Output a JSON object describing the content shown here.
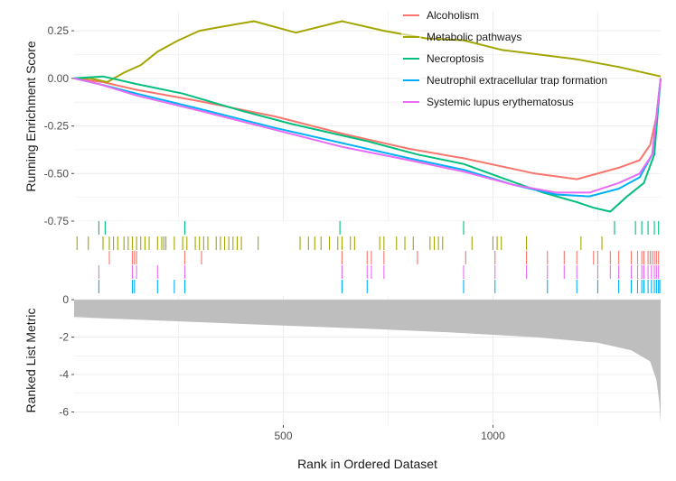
{
  "chart_data": {
    "type": "line",
    "x_range": [
      1,
      1400
    ],
    "colors": {
      "Alcoholism": "#F8766D",
      "Metabolic pathways": "#A3A500",
      "Necroptosis": "#00BF7D",
      "Neutrophil extracellular trap formation": "#00B0F6",
      "Systemic lupus erythematosus": "#E76BF3",
      "metric_fill": "#bebebe",
      "grid": "#ebebeb"
    },
    "panels": [
      {
        "name": "running-enrichment",
        "ylabel": "Running Enrichment Score",
        "ylim": [
          -0.75,
          0.35
        ],
        "yticks": [
          0.25,
          0.0,
          -0.25,
          -0.5,
          -0.75
        ],
        "ytick_labels": [
          "0.25",
          "0.00",
          "-0.25",
          "-0.50",
          "-0.75"
        ]
      },
      {
        "name": "gene-hits",
        "rows": [
          "Necroptosis",
          "Metabolic pathways",
          "Alcoholism",
          "Systemic lupus erythematosus",
          "Neutrophil extracellular trap formation"
        ]
      },
      {
        "name": "ranked-list",
        "ylabel": "Ranked List Metric",
        "xlabel": "Rank in Ordered Dataset",
        "ylim": [
          -6.7,
          0.2
        ],
        "yticks": [
          0,
          -2,
          -4,
          -6
        ],
        "ytick_labels": [
          "0",
          "-2",
          "-4",
          "-6"
        ],
        "xticks": [
          500,
          1000
        ],
        "xtick_labels": [
          "500",
          "1000"
        ],
        "metric_curve": [
          [
            1,
            -0.92
          ],
          [
            100,
            -1.02
          ],
          [
            300,
            -1.2
          ],
          [
            500,
            -1.38
          ],
          [
            700,
            -1.55
          ],
          [
            900,
            -1.75
          ],
          [
            1100,
            -2.0
          ],
          [
            1250,
            -2.3
          ],
          [
            1330,
            -2.7
          ],
          [
            1375,
            -3.3
          ],
          [
            1390,
            -4.3
          ],
          [
            1397,
            -5.5
          ],
          [
            1400,
            -6.6
          ]
        ]
      }
    ],
    "legend": {
      "position": "top-right",
      "entries": [
        "Alcoholism",
        "Metabolic pathways",
        "Necroptosis",
        "Neutrophil extracellular trap formation",
        "Systemic lupus erythematosus"
      ]
    },
    "series": [
      {
        "name": "Alcoholism",
        "points": [
          [
            1,
            0.0
          ],
          [
            70,
            -0.02
          ],
          [
            150,
            -0.06
          ],
          [
            300,
            -0.12
          ],
          [
            480,
            -0.2
          ],
          [
            640,
            -0.29
          ],
          [
            800,
            -0.37
          ],
          [
            930,
            -0.42
          ],
          [
            1100,
            -0.5
          ],
          [
            1200,
            -0.53
          ],
          [
            1300,
            -0.47
          ],
          [
            1350,
            -0.43
          ],
          [
            1375,
            -0.35
          ],
          [
            1390,
            -0.2
          ],
          [
            1400,
            0.0
          ]
        ],
        "hits": [
          85,
          140,
          145,
          150,
          265,
          305,
          640,
          700,
          710,
          740,
          820,
          935,
          1005,
          1080,
          1130,
          1170,
          1200,
          1240,
          1250,
          1280,
          1300,
          1330,
          1345,
          1355,
          1360,
          1370,
          1375,
          1380,
          1385,
          1390,
          1395
        ]
      },
      {
        "name": "Metabolic pathways",
        "points": [
          [
            1,
            0.0
          ],
          [
            40,
            0.0
          ],
          [
            80,
            -0.02
          ],
          [
            120,
            0.03
          ],
          [
            160,
            0.07
          ],
          [
            200,
            0.14
          ],
          [
            250,
            0.2
          ],
          [
            300,
            0.25
          ],
          [
            350,
            0.27
          ],
          [
            430,
            0.3
          ],
          [
            530,
            0.24
          ],
          [
            640,
            0.3
          ],
          [
            740,
            0.25
          ],
          [
            840,
            0.21
          ],
          [
            930,
            0.2
          ],
          [
            1020,
            0.15
          ],
          [
            1200,
            0.1
          ],
          [
            1300,
            0.06
          ],
          [
            1400,
            0.01
          ]
        ],
        "hits": [
          8,
          35,
          70,
          85,
          95,
          105,
          120,
          130,
          140,
          150,
          160,
          170,
          180,
          200,
          210,
          215,
          220,
          240,
          260,
          270,
          290,
          300,
          310,
          320,
          340,
          350,
          360,
          370,
          380,
          390,
          400,
          440,
          540,
          560,
          575,
          590,
          610,
          630,
          640,
          660,
          670,
          730,
          740,
          770,
          790,
          810,
          850,
          860,
          870,
          880,
          950,
          1000,
          1010,
          1020,
          1080,
          1210,
          1260
        ]
      },
      {
        "name": "Necroptosis",
        "points": [
          [
            1,
            0.0
          ],
          [
            70,
            0.01
          ],
          [
            150,
            -0.03
          ],
          [
            260,
            -0.08
          ],
          [
            400,
            -0.17
          ],
          [
            520,
            -0.24
          ],
          [
            640,
            -0.3
          ],
          [
            700,
            -0.33
          ],
          [
            820,
            -0.4
          ],
          [
            930,
            -0.45
          ],
          [
            1030,
            -0.53
          ],
          [
            1120,
            -0.6
          ],
          [
            1200,
            -0.65
          ],
          [
            1240,
            -0.68
          ],
          [
            1280,
            -0.7
          ],
          [
            1320,
            -0.62
          ],
          [
            1360,
            -0.55
          ],
          [
            1385,
            -0.4
          ],
          [
            1400,
            0.0
          ]
        ],
        "hits": [
          60,
          75,
          265,
          635,
          930,
          1290,
          1340,
          1355,
          1370,
          1385,
          1395
        ]
      },
      {
        "name": "Neutrophil extracellular trap formation",
        "points": [
          [
            1,
            0.0
          ],
          [
            60,
            -0.03
          ],
          [
            150,
            -0.08
          ],
          [
            300,
            -0.16
          ],
          [
            480,
            -0.26
          ],
          [
            640,
            -0.34
          ],
          [
            800,
            -0.42
          ],
          [
            930,
            -0.48
          ],
          [
            1050,
            -0.56
          ],
          [
            1150,
            -0.61
          ],
          [
            1230,
            -0.62
          ],
          [
            1300,
            -0.58
          ],
          [
            1350,
            -0.52
          ],
          [
            1380,
            -0.4
          ],
          [
            1400,
            0.0
          ]
        ],
        "hits": [
          60,
          140,
          145,
          200,
          240,
          265,
          640,
          700,
          930,
          1005,
          1130,
          1200,
          1250,
          1300,
          1330,
          1345,
          1355,
          1360,
          1370,
          1378,
          1385,
          1390,
          1395,
          1398
        ]
      },
      {
        "name": "Systemic lupus erythematosus",
        "points": [
          [
            1,
            0.0
          ],
          [
            60,
            -0.03
          ],
          [
            150,
            -0.09
          ],
          [
            300,
            -0.17
          ],
          [
            480,
            -0.27
          ],
          [
            640,
            -0.36
          ],
          [
            800,
            -0.43
          ],
          [
            930,
            -0.49
          ],
          [
            1050,
            -0.56
          ],
          [
            1150,
            -0.6
          ],
          [
            1230,
            -0.6
          ],
          [
            1300,
            -0.55
          ],
          [
            1350,
            -0.5
          ],
          [
            1380,
            -0.4
          ],
          [
            1400,
            0.0
          ]
        ],
        "hits": [
          60,
          140,
          150,
          200,
          265,
          640,
          700,
          710,
          740,
          930,
          1005,
          1080,
          1130,
          1170,
          1200,
          1250,
          1280,
          1300,
          1330,
          1345,
          1355,
          1360,
          1370,
          1378,
          1385,
          1390,
          1395
        ]
      }
    ]
  }
}
